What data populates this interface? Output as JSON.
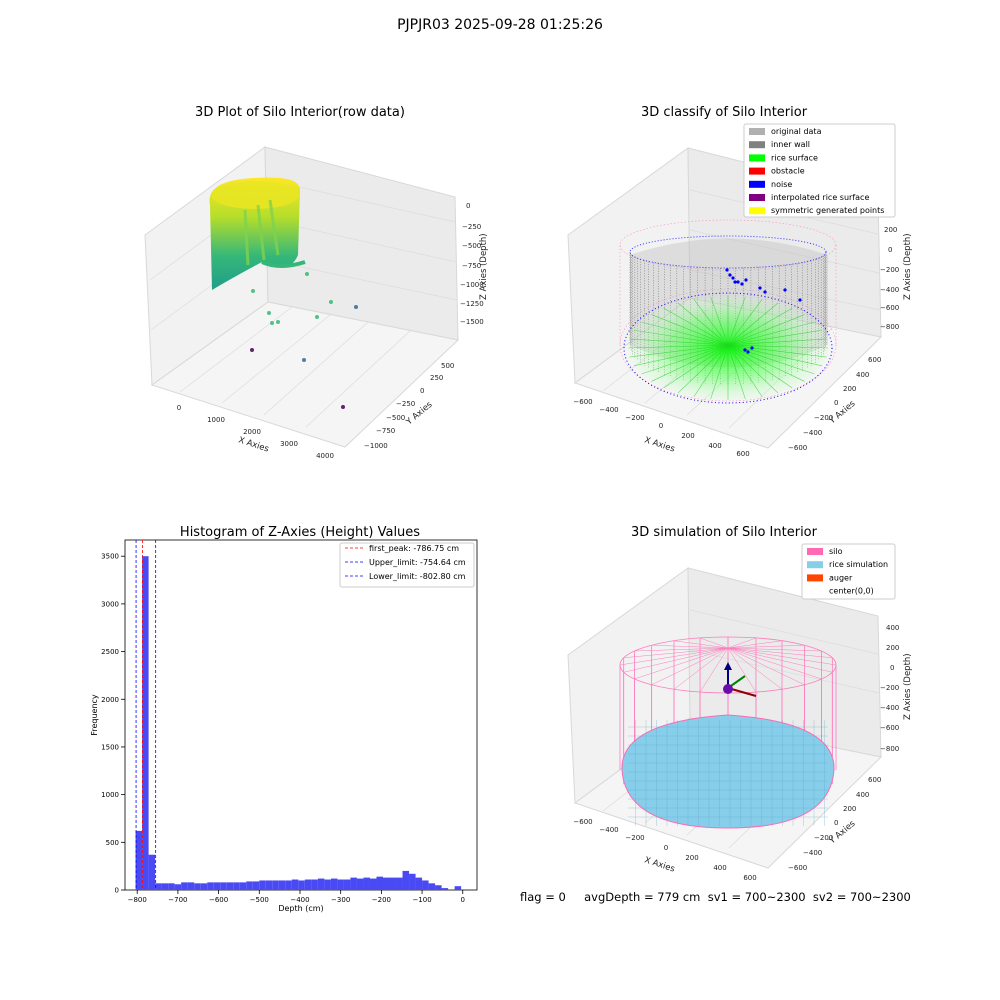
{
  "suptitle": "PJPJR03 2025-09-28 01:25:26",
  "footer": "flag = 0     avgDepth = 779 cm  sv1 = 700~2300  sv2 = 700~2300",
  "chart_data": [
    {
      "type": "scatter3d",
      "title": "3D Plot of Silo Interior(row data)",
      "xlabel": "X Axies",
      "ylabel": "Y Axies",
      "zlabel": "Z Axies (Depth)",
      "xticks": [
        "0",
        "1000",
        "2000",
        "3000",
        "4000"
      ],
      "yticks": [
        "500",
        "250",
        "0",
        "−250",
        "−500",
        "−750",
        "−1000"
      ],
      "zticks": [
        "0",
        "−250",
        "−500",
        "−750",
        "−1000",
        "−1250",
        "−1500"
      ],
      "colormap": [
        "#440154",
        "#31688e",
        "#35b779",
        "#fde725"
      ]
    },
    {
      "type": "scatter3d",
      "title": "3D classify of Silo Interior",
      "xlabel": "X Axies",
      "ylabel": "Y Axies",
      "zlabel": "Z Axies (Depth)",
      "xticks": [
        "−600",
        "−400",
        "−200",
        "0",
        "200",
        "400",
        "600"
      ],
      "yticks": [
        "600",
        "400",
        "200",
        "0",
        "−200",
        "−400",
        "−600"
      ],
      "zticks": [
        "200",
        "0",
        "−200",
        "−400",
        "−600",
        "−800"
      ],
      "legend_position": "upper right",
      "legend": [
        {
          "label": "original data",
          "color": "#b0b0b0"
        },
        {
          "label": "inner wall",
          "color": "#808080"
        },
        {
          "label": "rice surface",
          "color": "#00ff00"
        },
        {
          "label": "obstacle",
          "color": "#ff0000"
        },
        {
          "label": "noise",
          "color": "#0000ff"
        },
        {
          "label": "interpolated rice surface",
          "color": "#800080"
        },
        {
          "label": "symmetric generated points",
          "color": "#ffff00"
        }
      ]
    },
    {
      "type": "bar",
      "title": "Histogram of Z-Axies (Height) Values",
      "xlabel": "Depth (cm)",
      "ylabel": "Frequency",
      "xlim": [
        -830,
        35
      ],
      "ylim": [
        0,
        3670
      ],
      "xticks": [
        -800,
        -700,
        -600,
        -500,
        -400,
        -300,
        -200,
        -100,
        0
      ],
      "yticks": [
        0,
        500,
        1000,
        1500,
        2000,
        2500,
        3000,
        3500
      ],
      "bar_color": "#4a4af5",
      "bin_width": 16,
      "bin_starts": [
        -804,
        -788,
        -772,
        -756,
        -740,
        -724,
        -708,
        -692,
        -676,
        -660,
        -644,
        -628,
        -612,
        -596,
        -580,
        -564,
        -548,
        -532,
        -516,
        -500,
        -484,
        -468,
        -452,
        -436,
        -420,
        -404,
        -388,
        -372,
        -356,
        -340,
        -324,
        -308,
        -292,
        -276,
        -260,
        -244,
        -228,
        -212,
        -196,
        -180,
        -164,
        -148,
        -132,
        -116,
        -100,
        -84,
        -68,
        -52,
        -36,
        -20,
        -4
      ],
      "values": [
        620,
        3500,
        370,
        70,
        70,
        70,
        60,
        80,
        80,
        70,
        70,
        80,
        80,
        80,
        80,
        80,
        80,
        90,
        90,
        100,
        100,
        100,
        100,
        100,
        110,
        100,
        110,
        110,
        120,
        110,
        120,
        110,
        110,
        130,
        120,
        130,
        120,
        140,
        130,
        130,
        130,
        200,
        170,
        130,
        100,
        70,
        50,
        20,
        0,
        40,
        0
      ],
      "reference_lines": [
        {
          "label": "first_peak: -786.75 cm",
          "x": -786.75,
          "color": "#ff0000"
        },
        {
          "label": "Upper_limit: -754.64 cm",
          "x": -754.64,
          "color": "#0000ff"
        },
        {
          "label": "Lower_limit: -802.80 cm",
          "x": -802.8,
          "color": "#0000ff"
        }
      ],
      "legend_position": "upper right"
    },
    {
      "type": "surface3d",
      "title": "3D simulation of Silo Interior",
      "xlabel": "X Axies",
      "ylabel": "Y Axies",
      "zlabel": "Z Axies (Depth)",
      "xticks": [
        "−600",
        "−400",
        "−200",
        "0",
        "200",
        "400",
        "600"
      ],
      "yticks": [
        "600",
        "400",
        "200",
        "0",
        "−200",
        "−400",
        "−600"
      ],
      "zticks": [
        "400",
        "200",
        "0",
        "−200",
        "−400",
        "−600",
        "−800"
      ],
      "legend_position": "upper right",
      "legend": [
        {
          "label": "silo",
          "color": "#ff69b4"
        },
        {
          "label": "rice simulation",
          "color": "#87ceeb"
        },
        {
          "label": "auger",
          "color": "#ff4500"
        },
        {
          "label": "center(0,0)",
          "color": "#ffffff"
        }
      ]
    }
  ]
}
